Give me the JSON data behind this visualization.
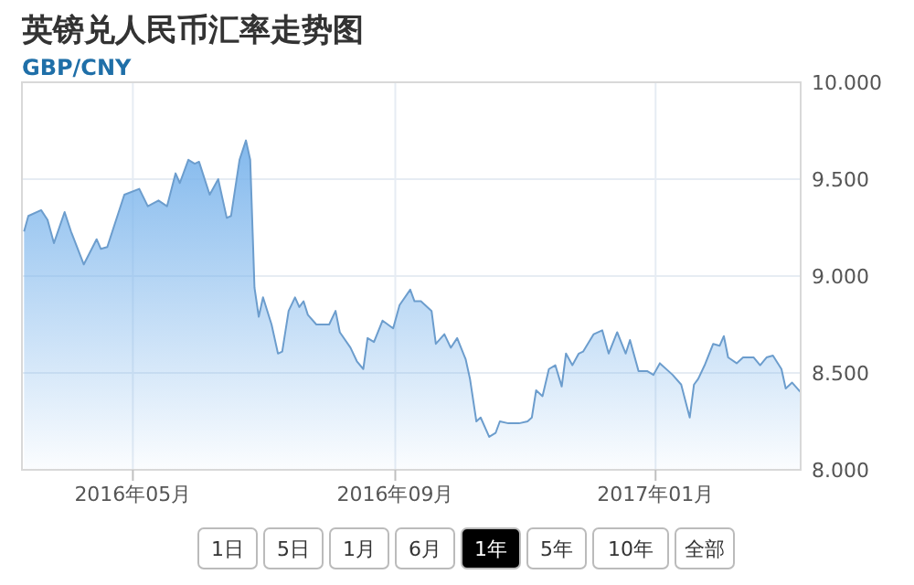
{
  "chart_data": {
    "type": "area",
    "title": "英镑兑人民币汇率走势图",
    "subtitle": "GBP/CNY",
    "x": [
      "2016-03-11",
      "2016-03-13",
      "2016-03-19",
      "2016-03-22",
      "2016-03-25",
      "2016-03-30",
      "2016-04-02",
      "2016-04-08",
      "2016-04-14",
      "2016-04-16",
      "2016-04-19",
      "2016-04-27",
      "2016-05-04",
      "2016-05-08",
      "2016-05-13",
      "2016-05-17",
      "2016-05-21",
      "2016-05-23",
      "2016-05-27",
      "2016-05-30",
      "2016-06-01",
      "2016-06-06",
      "2016-06-10",
      "2016-06-14",
      "2016-06-16",
      "2016-06-20",
      "2016-06-23",
      "2016-06-25",
      "2016-06-27",
      "2016-06-29",
      "2016-07-01",
      "2016-07-05",
      "2016-07-08",
      "2016-07-10",
      "2016-07-13",
      "2016-07-16",
      "2016-07-18",
      "2016-07-20",
      "2016-07-22",
      "2016-07-26",
      "2016-07-29",
      "2016-08-01",
      "2016-08-04",
      "2016-08-06",
      "2016-08-11",
      "2016-08-14",
      "2016-08-17",
      "2016-08-19",
      "2016-08-22",
      "2016-08-26",
      "2016-08-31",
      "2016-09-03",
      "2016-09-08",
      "2016-09-10",
      "2016-09-13",
      "2016-09-18",
      "2016-09-20",
      "2016-09-24",
      "2016-09-27",
      "2016-09-30",
      "2016-10-04",
      "2016-10-06",
      "2016-10-09",
      "2016-10-11",
      "2016-10-15",
      "2016-10-18",
      "2016-10-20",
      "2016-10-24",
      "2016-10-29",
      "2016-11-02",
      "2016-11-04",
      "2016-11-06",
      "2016-11-09",
      "2016-11-12",
      "2016-11-15",
      "2016-11-18",
      "2016-11-20",
      "2016-11-23",
      "2016-11-26",
      "2016-11-28",
      "2016-12-03",
      "2016-12-07",
      "2016-12-10",
      "2016-12-14",
      "2016-12-18",
      "2016-12-20",
      "2016-12-24",
      "2016-12-28",
      "2016-12-31",
      "2017-01-03",
      "2017-01-07",
      "2017-01-09",
      "2017-01-13",
      "2017-01-17",
      "2017-01-19",
      "2017-01-21",
      "2017-01-24",
      "2017-01-28",
      "2017-01-31",
      "2017-02-02",
      "2017-02-04",
      "2017-02-08",
      "2017-02-11",
      "2017-02-16",
      "2017-02-19",
      "2017-02-22",
      "2017-02-25",
      "2017-03-01",
      "2017-03-03",
      "2017-03-06",
      "2017-03-10"
    ],
    "series": [
      {
        "color": "#7cb5ec",
        "values": [
          9.23,
          9.31,
          9.34,
          9.29,
          9.17,
          9.33,
          9.23,
          9.06,
          9.19,
          9.14,
          9.15,
          9.42,
          9.45,
          9.36,
          9.39,
          9.36,
          9.53,
          9.48,
          9.6,
          9.58,
          9.59,
          9.42,
          9.5,
          9.3,
          9.31,
          9.6,
          9.7,
          9.6,
          8.94,
          8.79,
          8.89,
          8.75,
          8.6,
          8.61,
          8.82,
          8.89,
          8.84,
          8.87,
          8.8,
          8.75,
          8.75,
          8.75,
          8.82,
          8.71,
          8.63,
          8.56,
          8.52,
          8.68,
          8.66,
          8.77,
          8.73,
          8.85,
          8.93,
          8.87,
          8.87,
          8.82,
          8.65,
          8.7,
          8.63,
          8.68,
          8.57,
          8.47,
          8.25,
          8.27,
          8.17,
          8.19,
          8.25,
          8.24,
          8.24,
          8.25,
          8.27,
          8.41,
          8.38,
          8.52,
          8.54,
          8.43,
          8.6,
          8.54,
          8.6,
          8.61,
          8.7,
          8.72,
          8.6,
          8.71,
          8.6,
          8.67,
          8.51,
          8.51,
          8.49,
          8.55,
          8.51,
          8.49,
          8.44,
          8.27,
          8.44,
          8.47,
          8.54,
          8.65,
          8.64,
          8.69,
          8.58,
          8.55,
          8.58,
          8.58,
          8.54,
          8.58,
          8.59,
          8.52,
          8.42,
          8.45,
          8.4
        ]
      }
    ],
    "xlim": [
      "2016-03-10",
      "2017-03-10"
    ],
    "xticks": [
      {
        "value": "2016-05-01",
        "label": "2016年05月"
      },
      {
        "value": "2016-09-01",
        "label": "2016年09月"
      },
      {
        "value": "2017-01-01",
        "label": "2017年01月"
      }
    ],
    "ylim": [
      8,
      10
    ],
    "yticks": [
      {
        "value": 8,
        "label": "8.000"
      },
      {
        "value": 8.5,
        "label": "8.500"
      },
      {
        "value": 9,
        "label": "9.000"
      },
      {
        "value": 9.5,
        "label": "9.500"
      },
      {
        "value": 10,
        "label": "10.000"
      }
    ],
    "grid": true,
    "annotations": [
      "1日",
      "5日",
      "1月",
      "6月",
      "1年",
      "5年",
      "10年",
      "全部"
    ]
  }
}
